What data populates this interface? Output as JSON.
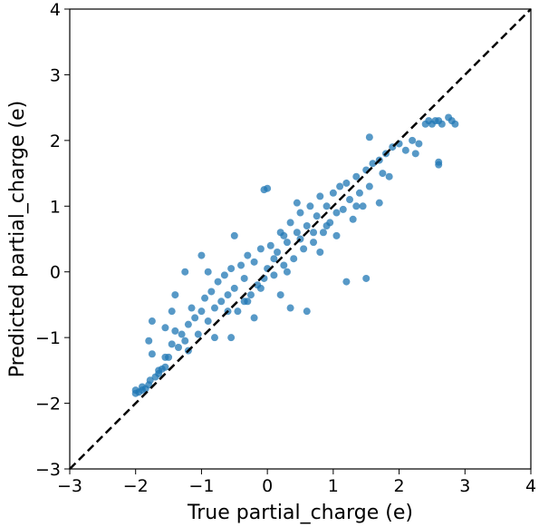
{
  "chart_data": {
    "type": "scatter",
    "title": "",
    "xlabel": "True partial_charge (e)",
    "ylabel": "Predicted partial_charge (e)",
    "xlim": [
      -3,
      4
    ],
    "ylim": [
      -3,
      4
    ],
    "xticks": [
      -3,
      -2,
      -1,
      0,
      1,
      2,
      3,
      4
    ],
    "yticks": [
      -3,
      -2,
      -1,
      0,
      1,
      2,
      3,
      4
    ],
    "xtick_labels": [
      "−3",
      "−2",
      "−1",
      "0",
      "1",
      "2",
      "3",
      "4"
    ],
    "ytick_labels": [
      "−3",
      "−2",
      "−1",
      "0",
      "1",
      "2",
      "3",
      "4"
    ],
    "grid": false,
    "legend": "none",
    "point_color": "#1f77b4",
    "reference_line": {
      "style": "dashed",
      "color": "#000000",
      "from": [
        -3,
        -3
      ],
      "to": [
        4,
        4
      ]
    },
    "series": [
      {
        "points": [
          [
            -2.0,
            -1.85
          ],
          [
            -1.95,
            -1.83
          ],
          [
            -1.9,
            -1.8
          ],
          [
            -1.85,
            -1.78
          ],
          [
            -1.8,
            -1.72
          ],
          [
            -1.78,
            -1.65
          ],
          [
            -1.7,
            -1.6
          ],
          [
            -1.65,
            -1.55
          ],
          [
            -1.6,
            -1.48
          ],
          [
            -1.55,
            -1.45
          ],
          [
            -1.75,
            -1.25
          ],
          [
            -1.8,
            -1.05
          ],
          [
            -1.75,
            -0.75
          ],
          [
            -1.55,
            -0.85
          ],
          [
            -1.5,
            -1.3
          ],
          [
            -1.45,
            -1.1
          ],
          [
            -1.4,
            -0.9
          ],
          [
            -1.35,
            -1.15
          ],
          [
            -1.3,
            -0.95
          ],
          [
            -1.25,
            -1.05
          ],
          [
            -1.2,
            -0.8
          ],
          [
            -1.15,
            -0.55
          ],
          [
            -1.1,
            -0.7
          ],
          [
            -1.05,
            -0.95
          ],
          [
            -1.0,
            -0.6
          ],
          [
            -0.95,
            -0.4
          ],
          [
            -0.9,
            -0.75
          ],
          [
            -0.85,
            -0.3
          ],
          [
            -0.8,
            -0.55
          ],
          [
            -0.75,
            -0.15
          ],
          [
            -0.7,
            -0.45
          ],
          [
            -0.65,
            -0.05
          ],
          [
            -0.6,
            -0.35
          ],
          [
            -0.55,
            0.05
          ],
          [
            -0.5,
            -0.25
          ],
          [
            -0.45,
            -0.6
          ],
          [
            -0.4,
            0.1
          ],
          [
            -0.35,
            -0.1
          ],
          [
            -0.3,
            0.25
          ],
          [
            -0.25,
            -0.35
          ],
          [
            -0.2,
            0.15
          ],
          [
            -0.15,
            -0.2
          ],
          [
            -0.1,
            0.35
          ],
          [
            -0.05,
            -0.1
          ],
          [
            0.0,
            0.05
          ],
          [
            0.05,
            0.4
          ],
          [
            0.1,
            -0.05
          ],
          [
            0.15,
            0.3
          ],
          [
            0.2,
            0.6
          ],
          [
            0.25,
            0.1
          ],
          [
            0.3,
            0.45
          ],
          [
            0.35,
            0.75
          ],
          [
            0.4,
            0.2
          ],
          [
            0.45,
            0.6
          ],
          [
            0.5,
            0.9
          ],
          [
            0.55,
            0.35
          ],
          [
            0.6,
            0.7
          ],
          [
            0.65,
            1.0
          ],
          [
            0.7,
            0.45
          ],
          [
            0.75,
            0.85
          ],
          [
            0.8,
            1.15
          ],
          [
            0.85,
            0.6
          ],
          [
            0.9,
            1.0
          ],
          [
            0.95,
            0.75
          ],
          [
            1.0,
            1.2
          ],
          [
            1.05,
            0.9
          ],
          [
            1.1,
            1.3
          ],
          [
            1.15,
            0.95
          ],
          [
            1.2,
            1.35
          ],
          [
            1.25,
            1.1
          ],
          [
            1.3,
            0.8
          ],
          [
            1.35,
            1.45
          ],
          [
            1.4,
            1.2
          ],
          [
            1.45,
            1.0
          ],
          [
            1.5,
            1.55
          ],
          [
            1.55,
            1.3
          ],
          [
            1.6,
            1.65
          ],
          [
            1.7,
            1.7
          ],
          [
            1.75,
            1.5
          ],
          [
            1.8,
            1.8
          ],
          [
            1.85,
            1.45
          ],
          [
            1.9,
            1.9
          ],
          [
            2.0,
            1.95
          ],
          [
            2.1,
            1.85
          ],
          [
            2.2,
            2.0
          ],
          [
            2.25,
            1.8
          ],
          [
            2.3,
            1.95
          ],
          [
            2.4,
            2.25
          ],
          [
            2.45,
            2.3
          ],
          [
            2.5,
            2.25
          ],
          [
            2.55,
            2.3
          ],
          [
            2.6,
            2.3
          ],
          [
            2.65,
            2.25
          ],
          [
            2.75,
            2.35
          ],
          [
            2.8,
            2.3
          ],
          [
            2.85,
            2.25
          ],
          [
            2.6,
            1.67
          ],
          [
            2.6,
            1.63
          ],
          [
            1.7,
            1.05
          ],
          [
            0.45,
            1.05
          ],
          [
            0.0,
            1.27
          ],
          [
            -0.05,
            1.25
          ],
          [
            1.2,
            -0.15
          ],
          [
            1.5,
            -0.1
          ],
          [
            -0.9,
            0.0
          ],
          [
            -1.25,
            0.0
          ],
          [
            -1.0,
            0.25
          ],
          [
            -0.5,
            0.55
          ],
          [
            0.35,
            -0.55
          ],
          [
            0.6,
            -0.6
          ],
          [
            -0.2,
            -0.7
          ],
          [
            -0.55,
            -1.0
          ],
          [
            1.55,
            2.05
          ],
          [
            -1.45,
            -0.6
          ],
          [
            -1.4,
            -0.35
          ],
          [
            -2.0,
            -1.8
          ],
          [
            -1.9,
            -1.75
          ],
          [
            -1.65,
            -1.5
          ],
          [
            -1.55,
            -1.3
          ],
          [
            -1.2,
            -1.2
          ],
          [
            -0.8,
            -1.0
          ],
          [
            -0.3,
            -0.45
          ],
          [
            0.2,
            -0.35
          ],
          [
            0.8,
            0.3
          ],
          [
            1.05,
            0.55
          ],
          [
            1.35,
            1.0
          ],
          [
            0.1,
            0.2
          ],
          [
            -0.1,
            -0.25
          ],
          [
            0.3,
            0.0
          ],
          [
            0.5,
            0.5
          ],
          [
            -0.6,
            -0.6
          ],
          [
            0.7,
            0.6
          ],
          [
            0.9,
            0.7
          ],
          [
            -0.35,
            -0.45
          ],
          [
            0.25,
            0.55
          ]
        ]
      }
    ]
  }
}
